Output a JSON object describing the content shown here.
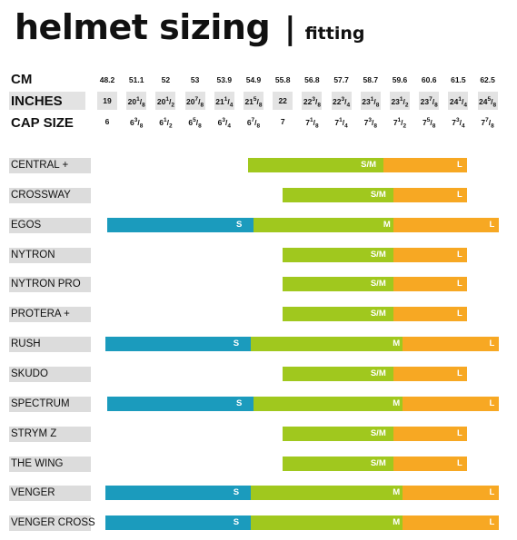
{
  "title": {
    "main": "helmet sizing",
    "separator": "|",
    "sub": "fitting"
  },
  "headers": {
    "cm": "CM",
    "inches": "INCHES",
    "cap": "CAP SIZE"
  },
  "columns": [
    {
      "cm": "48.2",
      "inches": "19",
      "cap": "6"
    },
    {
      "cm": "51.1",
      "inches": "20 1/8",
      "cap": "6 3/8"
    },
    {
      "cm": "52",
      "inches": "20 1/2",
      "cap": "6 1/2"
    },
    {
      "cm": "53",
      "inches": "20 7/8",
      "cap": "6 5/8"
    },
    {
      "cm": "53.9",
      "inches": "21 1/4",
      "cap": "6 3/4"
    },
    {
      "cm": "54.9",
      "inches": "21 5/8",
      "cap": "6 7/8"
    },
    {
      "cm": "55.8",
      "inches": "22",
      "cap": "7"
    },
    {
      "cm": "56.8",
      "inches": "22 3/8",
      "cap": "7 1/8"
    },
    {
      "cm": "57.7",
      "inches": "22 3/4",
      "cap": "7 1/4"
    },
    {
      "cm": "58.7",
      "inches": "23 1/8",
      "cap": "7 3/8"
    },
    {
      "cm": "59.6",
      "inches": "23 1/2",
      "cap": "7 1/2"
    },
    {
      "cm": "60.6",
      "inches": "23 7/8",
      "cap": "7 5/8"
    },
    {
      "cm": "61.5",
      "inches": "24 1/4",
      "cap": "7 3/4"
    },
    {
      "cm": "62.5",
      "inches": "24 5/8",
      "cap": "7 7/8"
    }
  ],
  "colors": {
    "s": "#1b9bbd",
    "m": "#a0c81e",
    "l": "#f7a823"
  },
  "models": [
    {
      "name": "CENTRAL +",
      "sizes": [
        {
          "label": "S/M",
          "from": 54.7,
          "to": 59.1
        },
        {
          "label": "L",
          "from": 59.1,
          "to": 61.8
        }
      ]
    },
    {
      "name": "CROSSWAY",
      "sizes": [
        {
          "label": "S/M",
          "from": 55.8,
          "to": 59.4
        },
        {
          "label": "L",
          "from": 59.4,
          "to": 61.8
        }
      ]
    },
    {
      "name": "EGOS",
      "sizes": [
        {
          "label": "S",
          "from": 48.2,
          "to": 55.8,
          "overlap": 54.9
        },
        {
          "label": "M",
          "from": 54.9,
          "to": 59.4
        },
        {
          "label": "L",
          "from": 59.4,
          "to": 62.9
        }
      ]
    },
    {
      "name": "NYTRON",
      "sizes": [
        {
          "label": "S/M",
          "from": 55.8,
          "to": 59.4
        },
        {
          "label": "L",
          "from": 59.4,
          "to": 61.8
        }
      ]
    },
    {
      "name": "NYTRON PRO",
      "sizes": [
        {
          "label": "S/M",
          "from": 55.8,
          "to": 59.4
        },
        {
          "label": "L",
          "from": 59.4,
          "to": 61.8
        }
      ]
    },
    {
      "name": "PROTERA +",
      "sizes": [
        {
          "label": "S/M",
          "from": 55.8,
          "to": 59.4
        },
        {
          "label": "L",
          "from": 59.4,
          "to": 61.8
        }
      ]
    },
    {
      "name": "RUSH",
      "sizes": [
        {
          "label": "S",
          "from": 48.0,
          "to": 55.7,
          "overlap": 54.8
        },
        {
          "label": "M",
          "from": 54.8,
          "to": 59.7
        },
        {
          "label": "L",
          "from": 59.7,
          "to": 62.9
        }
      ]
    },
    {
      "name": "SKUDO",
      "sizes": [
        {
          "label": "S/M",
          "from": 55.8,
          "to": 59.4
        },
        {
          "label": "L",
          "from": 59.4,
          "to": 61.8
        }
      ]
    },
    {
      "name": "SPECTRUM",
      "sizes": [
        {
          "label": "S",
          "from": 48.2,
          "to": 55.8,
          "overlap": 54.9
        },
        {
          "label": "M",
          "from": 54.9,
          "to": 59.7
        },
        {
          "label": "L",
          "from": 59.7,
          "to": 62.9
        }
      ]
    },
    {
      "name": "STRYM Z",
      "sizes": [
        {
          "label": "S/M",
          "from": 55.8,
          "to": 59.4
        },
        {
          "label": "L",
          "from": 59.4,
          "to": 61.8
        }
      ]
    },
    {
      "name": "THE WING",
      "sizes": [
        {
          "label": "S/M",
          "from": 55.8,
          "to": 59.4
        },
        {
          "label": "L",
          "from": 59.4,
          "to": 61.8
        }
      ]
    },
    {
      "name": "VENGER",
      "sizes": [
        {
          "label": "S",
          "from": 48.0,
          "to": 55.7,
          "overlap": 54.8
        },
        {
          "label": "M",
          "from": 54.8,
          "to": 59.7
        },
        {
          "label": "L",
          "from": 59.7,
          "to": 62.9
        }
      ]
    },
    {
      "name": "VENGER CROSS",
      "sizes": [
        {
          "label": "S",
          "from": 48.0,
          "to": 55.7,
          "overlap": 54.8
        },
        {
          "label": "M",
          "from": 54.8,
          "to": 59.7
        },
        {
          "label": "L",
          "from": 59.7,
          "to": 62.9
        }
      ]
    }
  ]
}
